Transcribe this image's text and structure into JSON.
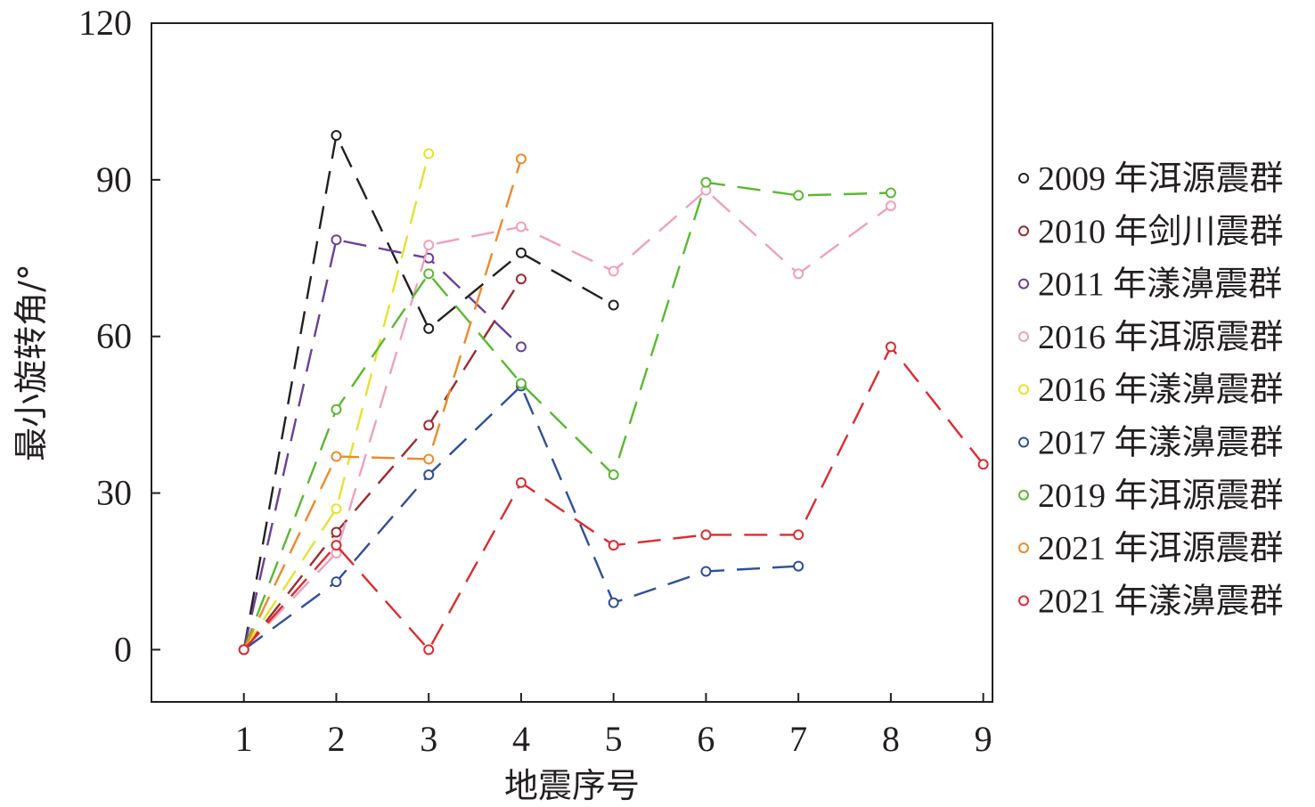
{
  "chart_data": {
    "type": "line",
    "title": "",
    "xlabel": "地震序号",
    "ylabel": "最小旋转角/°",
    "xlim": [
      0,
      9.1
    ],
    "ylim": [
      -10,
      120
    ],
    "xticks": [
      1,
      2,
      3,
      4,
      5,
      6,
      7,
      8,
      9
    ],
    "yticks": [
      0,
      30,
      60,
      90,
      120
    ],
    "grid": false,
    "legend_position": "right",
    "line_style": "dashed",
    "marker": "open-circle",
    "series": [
      {
        "name": "2009 年洱源震群",
        "color": "#231f20",
        "x": [
          1,
          2,
          3,
          4,
          5
        ],
        "y": [
          0,
          98.5,
          61.5,
          76,
          66
        ]
      },
      {
        "name": "2010 年剑川震群",
        "color": "#9b2b2f",
        "x": [
          1,
          2,
          3,
          4
        ],
        "y": [
          0,
          22.5,
          43,
          71
        ]
      },
      {
        "name": "2011 年漾濞震群",
        "color": "#6a3f9b",
        "x": [
          1,
          2,
          3,
          4
        ],
        "y": [
          0,
          78.5,
          75,
          58
        ]
      },
      {
        "name": "2016 年洱源震群",
        "color": "#efa0bd",
        "x": [
          1,
          2,
          3,
          4,
          5,
          6,
          7,
          8
        ],
        "y": [
          0,
          18.5,
          77.5,
          81,
          72.5,
          88,
          72,
          85
        ]
      },
      {
        "name": "2016 年漾濞震群",
        "color": "#e3e330",
        "x": [
          1,
          2,
          3
        ],
        "y": [
          0,
          27,
          95
        ]
      },
      {
        "name": "2017 年漾濞震群",
        "color": "#2e4f9a",
        "x": [
          1,
          2,
          3,
          4,
          5,
          6,
          7
        ],
        "y": [
          0,
          13,
          33.5,
          50.5,
          9,
          15,
          16
        ]
      },
      {
        "name": "2019 年洱源震群",
        "color": "#59b930",
        "x": [
          1,
          2,
          3,
          4,
          5,
          6,
          7,
          8
        ],
        "y": [
          0,
          46,
          72,
          51,
          33.5,
          89.5,
          87,
          87.5
        ]
      },
      {
        "name": "2021 年洱源震群",
        "color": "#ec8a2d",
        "x": [
          1,
          2,
          3,
          4
        ],
        "y": [
          0,
          37,
          36.5,
          94
        ]
      },
      {
        "name": "2021 年漾濞震群",
        "color": "#dc2b30",
        "x": [
          1,
          2,
          3,
          4,
          5,
          6,
          7,
          8,
          9
        ],
        "y": [
          0,
          20,
          0,
          32,
          20,
          22,
          22,
          58,
          35.5
        ]
      }
    ]
  }
}
